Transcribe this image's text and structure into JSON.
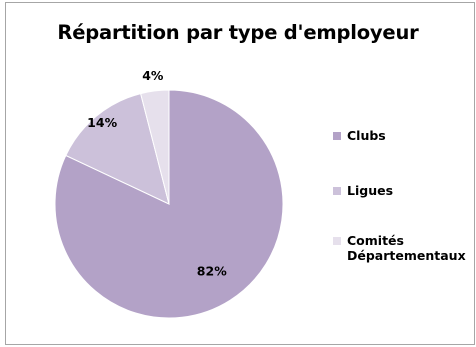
{
  "chart_data": {
    "type": "pie",
    "title": "Répartition par type d'employeur",
    "categories": [
      "Clubs",
      "Ligues",
      "Comités Départementaux"
    ],
    "values": [
      82,
      14,
      4
    ],
    "data_labels": [
      "82%",
      "14%",
      "4%"
    ],
    "colors": [
      "#b3a2c7",
      "#ccc1da",
      "#e6e0ec"
    ],
    "legend_placement": "right",
    "start": "top, clockwise"
  }
}
